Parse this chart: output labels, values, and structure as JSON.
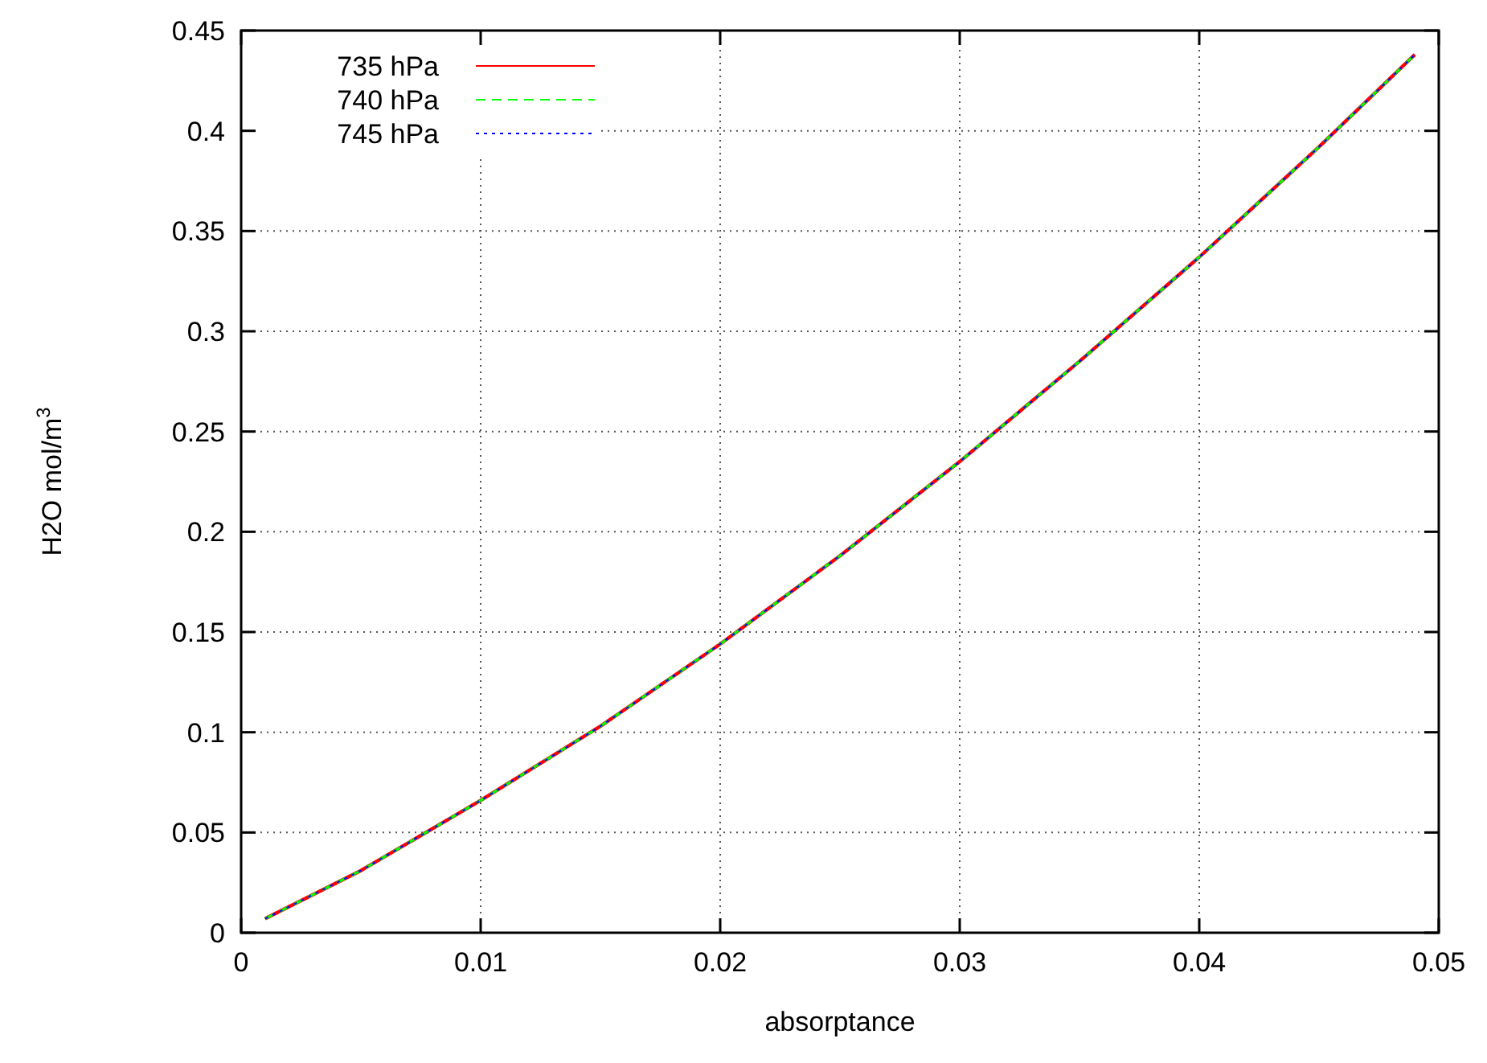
{
  "chart_data": {
    "type": "line",
    "xlabel": "absorptance",
    "ylabel": "H2O mol/m$^{3}$",
    "x": [
      0.001,
      0.005,
      0.01,
      0.015,
      0.02,
      0.025,
      0.03,
      0.035,
      0.04,
      0.045,
      0.049
    ],
    "series": [
      {
        "name": "735 hPa",
        "color": "#ff0000",
        "line_style": "solid",
        "values": [
          0.007,
          0.031,
          0.066,
          0.103,
          0.144,
          0.188,
          0.235,
          0.285,
          0.337,
          0.392,
          0.438
        ]
      },
      {
        "name": "740 hPa",
        "color": "#00ff00",
        "line_style": "dashed",
        "values": [
          0.007,
          0.031,
          0.066,
          0.103,
          0.144,
          0.188,
          0.235,
          0.285,
          0.337,
          0.392,
          0.438
        ]
      },
      {
        "name": "745 hPa",
        "color": "#0000ff",
        "line_style": "dotted",
        "values": [
          0.007,
          0.031,
          0.066,
          0.103,
          0.144,
          0.188,
          0.235,
          0.285,
          0.337,
          0.392,
          0.438
        ]
      }
    ],
    "xlim": [
      0,
      0.05
    ],
    "xticks": [
      0,
      0.01,
      0.02,
      0.03,
      0.04,
      0.05
    ],
    "ylim": [
      0,
      0.45
    ],
    "yticks": [
      0,
      0.05,
      0.1,
      0.15,
      0.2,
      0.25,
      0.3,
      0.35,
      0.4,
      0.45
    ],
    "grid": true,
    "legend": "top left"
  }
}
